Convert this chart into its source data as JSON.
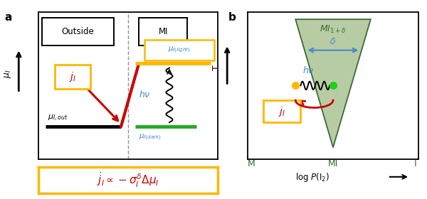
{
  "colors": {
    "gold": "#FFB800",
    "red": "#CC0000",
    "dark_green": "#3a6b35",
    "light_green": "#b8cca4",
    "blue_label": "#4488cc",
    "black": "#000000",
    "green_line": "#22aa22",
    "gray": "#888888"
  },
  "panel_a": {
    "outside_label": "Outside",
    "mi_label": "MI",
    "mu_out_label": "$\\mu_{I,out}$",
    "mu_dark_label": "$\\mu_{I (dark)}$",
    "mu_light_label": "$\\mu_{I (light)}$",
    "hv_label": "$h\\nu$",
    "ji_label": "$j_I$",
    "ylabel": "$\\mu_I$",
    "formula": "$\\dot{j}_I \\propto -\\sigma_I^{\\delta} \\Delta\\mu_I$"
  },
  "panel_b": {
    "title": "$MI_{1+\\delta}$",
    "delta_label": "$\\delta$",
    "hv_label": "$h\\nu$",
    "ji_label": "$j_I$",
    "xlabel": "log $P(\\mathrm{I}_2)$",
    "ylabel": "T",
    "x_labels": [
      "M",
      "MI",
      "I"
    ]
  }
}
